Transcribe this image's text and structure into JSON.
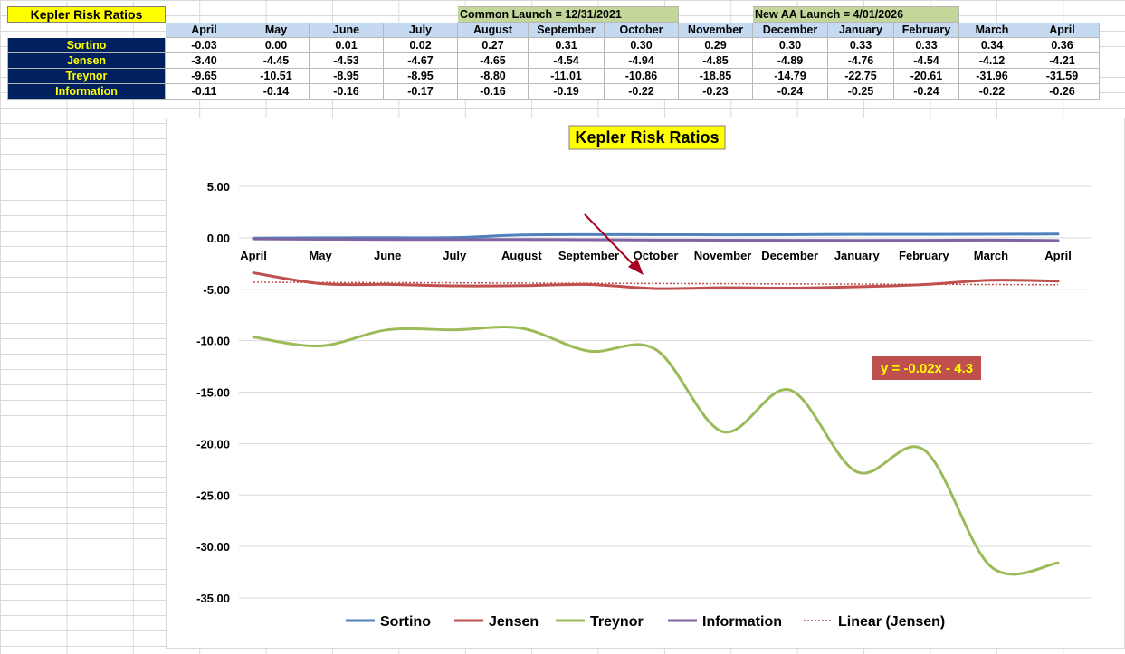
{
  "sheet": {
    "title": "Kepler Risk Ratios",
    "launch_notes": [
      "Common Launch = 12/31/2021",
      "New AA Launch = 4/01/2026"
    ],
    "months": [
      "April",
      "May",
      "June",
      "July",
      "August",
      "September",
      "October",
      "November",
      "December",
      "January",
      "February",
      "March",
      "April"
    ],
    "rows": [
      {
        "label": "Sortino",
        "values": [
          "-0.03",
          "0.00",
          "0.01",
          "0.02",
          "0.27",
          "0.31",
          "0.30",
          "0.29",
          "0.30",
          "0.33",
          "0.33",
          "0.34",
          "0.36"
        ]
      },
      {
        "label": "Jensen",
        "values": [
          "-3.40",
          "-4.45",
          "-4.53",
          "-4.67",
          "-4.65",
          "-4.54",
          "-4.94",
          "-4.85",
          "-4.89",
          "-4.76",
          "-4.54",
          "-4.12",
          "-4.21"
        ]
      },
      {
        "label": "Treynor",
        "values": [
          "-9.65",
          "-10.51",
          "-8.95",
          "-8.95",
          "-8.80",
          "-11.01",
          "-10.86",
          "-18.85",
          "-14.79",
          "-22.75",
          "-20.61",
          "-31.96",
          "-31.59"
        ]
      },
      {
        "label": "Information",
        "values": [
          "-0.11",
          "-0.14",
          "-0.16",
          "-0.17",
          "-0.16",
          "-0.19",
          "-0.22",
          "-0.23",
          "-0.24",
          "-0.25",
          "-0.24",
          "-0.22",
          "-0.26"
        ]
      }
    ]
  },
  "chart_data": {
    "type": "line",
    "title": "Kepler Risk Ratios",
    "categories": [
      "April",
      "May",
      "June",
      "July",
      "August",
      "September",
      "October",
      "November",
      "December",
      "January",
      "February",
      "March",
      "April"
    ],
    "ylim": [
      -35,
      5
    ],
    "yticks": [
      "5.00",
      "0.00",
      "-5.00",
      "-10.00",
      "-15.00",
      "-20.00",
      "-25.00",
      "-30.00",
      "-35.00"
    ],
    "grid": true,
    "legend_position": "bottom",
    "series": [
      {
        "name": "Sortino",
        "color": "#4f81bd",
        "values": [
          -0.03,
          0.0,
          0.01,
          0.02,
          0.27,
          0.31,
          0.3,
          0.29,
          0.3,
          0.33,
          0.33,
          0.34,
          0.36
        ]
      },
      {
        "name": "Jensen",
        "color": "#c0504d",
        "values": [
          -3.4,
          -4.45,
          -4.53,
          -4.67,
          -4.65,
          -4.54,
          -4.94,
          -4.85,
          -4.89,
          -4.76,
          -4.54,
          -4.12,
          -4.21
        ]
      },
      {
        "name": "Treynor",
        "color": "#9bbb59",
        "values": [
          -9.65,
          -10.51,
          -8.95,
          -8.95,
          -8.8,
          -11.01,
          -10.86,
          -18.85,
          -14.79,
          -22.75,
          -20.61,
          -31.96,
          -31.59
        ]
      },
      {
        "name": "Information",
        "color": "#8064a2",
        "values": [
          -0.11,
          -0.14,
          -0.16,
          -0.17,
          -0.16,
          -0.19,
          -0.22,
          -0.23,
          -0.24,
          -0.25,
          -0.24,
          -0.22,
          -0.26
        ]
      }
    ],
    "trendline": {
      "name": "Linear (Jensen)",
      "color": "#c0504d",
      "slope": -0.02,
      "intercept": -4.3
    },
    "annotation": {
      "text": "y = -0.02x - 4.3",
      "background": "#c0504d",
      "color": "#ffff00"
    },
    "arrow_color": "#a50021"
  }
}
